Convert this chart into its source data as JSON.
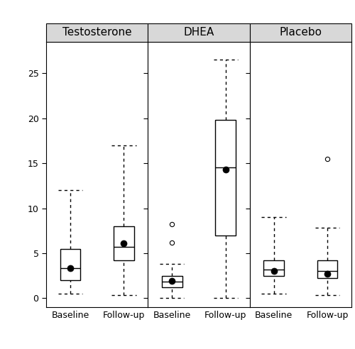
{
  "groups": [
    "Testosterone",
    "DHEA",
    "Placebo"
  ],
  "time_labels": [
    "Baseline",
    "Follow-up"
  ],
  "boxes": {
    "Testosterone": {
      "Baseline": {
        "whisker_low": 0.5,
        "q1": 2.0,
        "median": 3.3,
        "q3": 5.5,
        "whisker_high": 12.0,
        "mean": 3.3,
        "outliers": []
      },
      "Follow-up": {
        "whisker_low": 0.3,
        "q1": 4.2,
        "median": 5.7,
        "q3": 8.0,
        "whisker_high": 17.0,
        "mean": 6.1,
        "outliers": []
      }
    },
    "DHEA": {
      "Baseline": {
        "whisker_low": 0.0,
        "q1": 1.2,
        "median": 1.8,
        "q3": 2.5,
        "whisker_high": 3.8,
        "mean": 1.9,
        "outliers": [
          6.2,
          8.2
        ]
      },
      "Follow-up": {
        "whisker_low": 0.0,
        "q1": 7.0,
        "median": 14.5,
        "q3": 19.8,
        "whisker_high": 26.5,
        "mean": 14.3,
        "outliers": []
      }
    },
    "Placebo": {
      "Baseline": {
        "whisker_low": 0.5,
        "q1": 2.5,
        "median": 3.2,
        "q3": 4.2,
        "whisker_high": 9.0,
        "mean": 3.0,
        "outliers": []
      },
      "Follow-up": {
        "whisker_low": 0.3,
        "q1": 2.2,
        "median": 3.0,
        "q3": 4.2,
        "whisker_high": 7.8,
        "mean": 2.7,
        "outliers": [
          15.5
        ]
      }
    }
  },
  "ylim": [
    -1.0,
    28.5
  ],
  "yticks": [
    0,
    5,
    10,
    15,
    20,
    25
  ],
  "panel_color": "#ffffff",
  "header_color": "#d8d8d8",
  "box_width": 0.38,
  "dpi": 100,
  "figsize": [
    5.0,
    4.92
  ],
  "title_fontsize": 11,
  "tick_fontsize": 9,
  "linewidth": 1.0
}
